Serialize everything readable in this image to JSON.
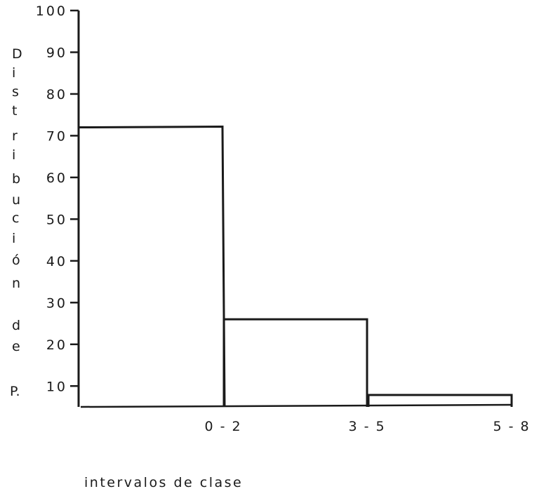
{
  "chart_data": {
    "type": "bar",
    "title": "",
    "xlabel": "intervalos de clase",
    "ylabel": "Distribución de P.",
    "ylabel_letters": [
      "D",
      "i",
      "s",
      "t",
      "r",
      "i",
      "b",
      "u",
      "c",
      "i",
      "ó",
      "n",
      "",
      "d",
      "e",
      "",
      "P."
    ],
    "categories": [
      "0 - 2",
      "3 - 5",
      "5 - 8"
    ],
    "values": [
      72,
      26,
      2
    ],
    "ylim": [
      5,
      100
    ],
    "yticks": [
      10,
      20,
      30,
      40,
      50,
      60,
      70,
      80,
      90,
      100
    ],
    "grid": false,
    "colors": {
      "ink": "#1a1a1a",
      "background": "#ffffff"
    }
  }
}
